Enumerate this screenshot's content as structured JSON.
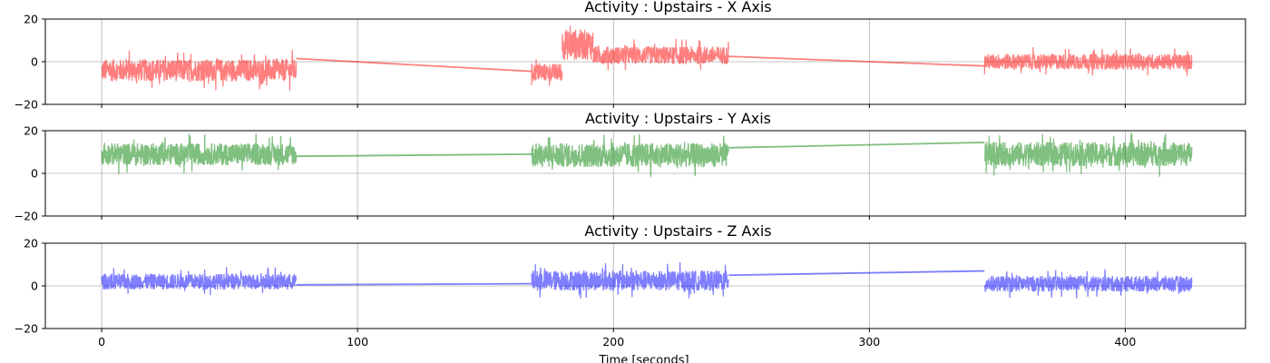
{
  "xlabel": "Time [seconds]",
  "x_ticks": [
    "0",
    "100",
    "200",
    "300",
    "400"
  ],
  "x_tick_values": [
    0,
    100,
    200,
    300,
    400
  ],
  "xlim": [
    -22,
    447
  ],
  "chart_data": [
    {
      "type": "line",
      "title": "Activity : Upstairs - X Axis",
      "color": "#ff0000",
      "alpha": 0.5,
      "ylim": [
        -20,
        20
      ],
      "y_ticks": [
        "20",
        "0",
        "−20"
      ],
      "y_tick_values": [
        20,
        0,
        -20
      ],
      "grid": true,
      "segments": [
        {
          "x": [
            0,
            76
          ],
          "mean": -4,
          "amplitude": 5
        },
        {
          "x": [
            168,
            180
          ],
          "mean": -5,
          "amplitude": 4
        },
        {
          "x": [
            180,
            192
          ],
          "mean": 8,
          "amplitude": 7
        },
        {
          "x": [
            192,
            245
          ],
          "mean": 3,
          "amplitude": 4
        },
        {
          "x": [
            345,
            426
          ],
          "mean": 0,
          "amplitude": 3.5
        }
      ],
      "connectors": [
        {
          "x": [
            76,
            168
          ],
          "y": [
            1.5,
            -4.5
          ]
        },
        {
          "x": [
            245,
            345
          ],
          "y": [
            2.5,
            -2
          ]
        }
      ]
    },
    {
      "type": "line",
      "title": "Activity : Upstairs - Y Axis",
      "color": "#008000",
      "alpha": 0.5,
      "ylim": [
        -20,
        20
      ],
      "y_ticks": [
        "20",
        "0",
        "−20"
      ],
      "y_tick_values": [
        20,
        0,
        -20
      ],
      "grid": true,
      "segments": [
        {
          "x": [
            0,
            76
          ],
          "mean": 9,
          "amplitude": 5
        },
        {
          "x": [
            168,
            245
          ],
          "mean": 8.5,
          "amplitude": 5.5
        },
        {
          "x": [
            345,
            426
          ],
          "mean": 9,
          "amplitude": 5.5
        }
      ],
      "connectors": [
        {
          "x": [
            76,
            168
          ],
          "y": [
            8,
            9
          ]
        },
        {
          "x": [
            245,
            345
          ],
          "y": [
            12,
            14.5
          ]
        }
      ]
    },
    {
      "type": "line",
      "title": "Activity : Upstairs - Z Axis",
      "color": "#0000ff",
      "alpha": 0.5,
      "ylim": [
        -20,
        20
      ],
      "y_ticks": [
        "20",
        "0",
        "−20"
      ],
      "y_tick_values": [
        20,
        0,
        -20
      ],
      "grid": true,
      "segments": [
        {
          "x": [
            0,
            76
          ],
          "mean": 2,
          "amplitude": 3.5
        },
        {
          "x": [
            168,
            245
          ],
          "mean": 2.5,
          "amplitude": 4.5
        },
        {
          "x": [
            345,
            426
          ],
          "mean": 1,
          "amplitude": 3.5
        }
      ],
      "connectors": [
        {
          "x": [
            76,
            168
          ],
          "y": [
            0.5,
            1
          ]
        },
        {
          "x": [
            245,
            345
          ],
          "y": [
            5,
            7
          ]
        }
      ]
    }
  ]
}
